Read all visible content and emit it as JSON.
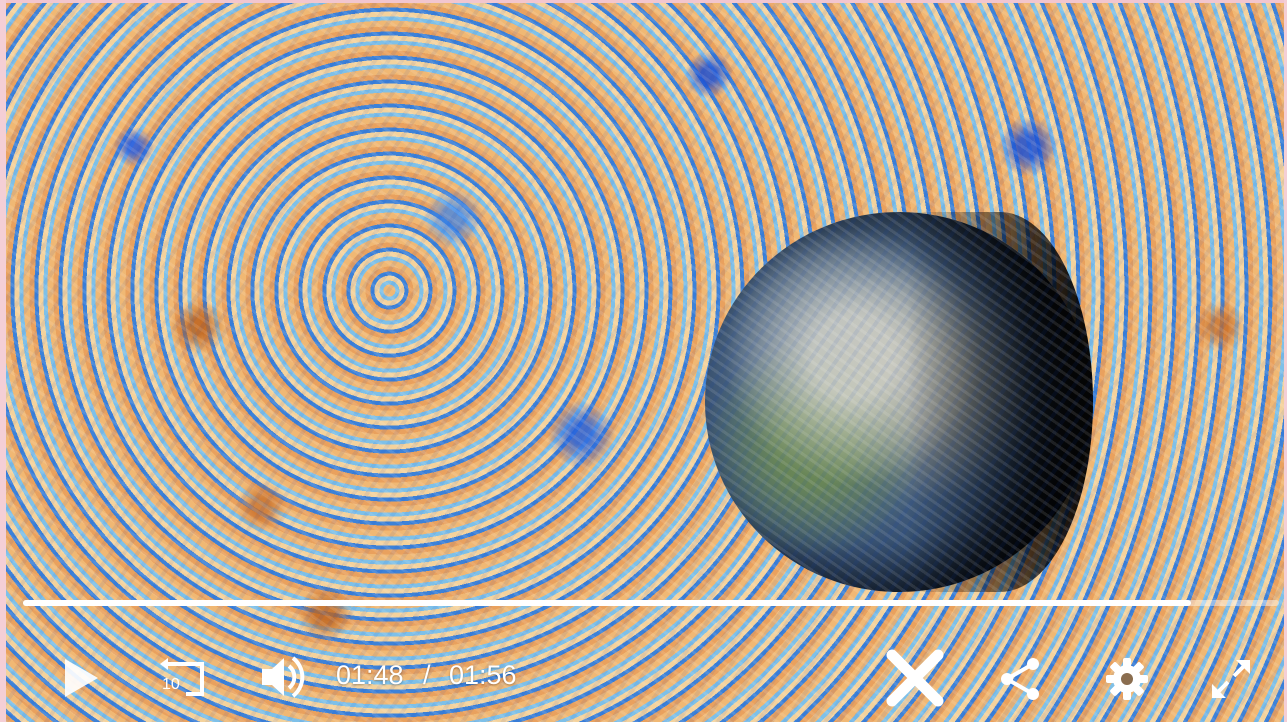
{
  "player": {
    "current_time": "01:48",
    "time_separator": "/",
    "duration": "01:56",
    "progress_fraction": 0.93,
    "skip_back_seconds": "10"
  },
  "controls": {
    "play_icon": "play-icon",
    "rewind_icon": "rewind-10-icon",
    "volume_icon": "volume-icon",
    "close_icon": "close-icon",
    "share_icon": "share-icon",
    "settings_icon": "gear-icon",
    "fullscreen_icon": "fullscreen-icon"
  },
  "colors": {
    "control_fg": "#ffffff",
    "progress_track": "rgba(255,255,255,0.45)"
  }
}
